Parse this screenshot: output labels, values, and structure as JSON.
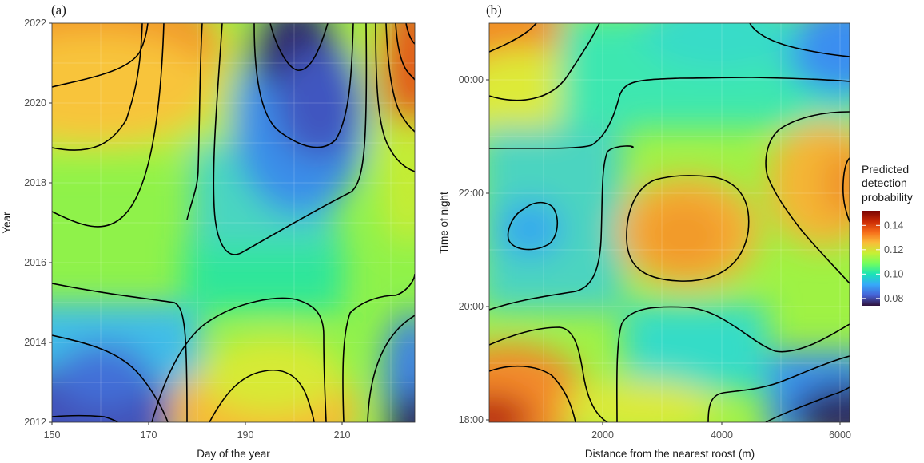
{
  "colors": {
    "heat_stops": [
      "#30123b",
      "#4662d7",
      "#36a9f9",
      "#1ae4b6",
      "#72fe5e",
      "#c8ef34",
      "#faba39",
      "#f66b19",
      "#ca2a04",
      "#7a0403"
    ],
    "contour": "#000000"
  },
  "legend": {
    "title_lines": [
      "Predicted",
      "detection",
      "probability"
    ],
    "ticks": [
      "0.14",
      "0.12",
      "0.10",
      "0.08"
    ],
    "tick_values": [
      0.14,
      0.12,
      0.1,
      0.08
    ],
    "range": [
      0.074,
      0.152
    ],
    "colormap": "turbo"
  },
  "chart_data": [
    {
      "panel": "(a)",
      "type": "heatmap",
      "xlabel": "Day of the year",
      "ylabel": "Year",
      "xlim": [
        150,
        225
      ],
      "ylim": [
        2012,
        2022
      ],
      "x_ticks": [
        150,
        170,
        190,
        210
      ],
      "x_tick_labels": [
        "150",
        "170",
        "190",
        "210"
      ],
      "y_ticks": [
        2012,
        2014,
        2016,
        2018,
        2020,
        2022
      ],
      "y_tick_labels": [
        "2012",
        "2014",
        "2016",
        "2018",
        "2020",
        "2022"
      ],
      "z_label": "Predicted detection probability",
      "z_range": [
        0.075,
        0.15
      ],
      "features": [
        {
          "x": 150,
          "y": 2022,
          "z": 0.142
        },
        {
          "x": 150,
          "y": 2012,
          "z": 0.085
        },
        {
          "x": 200,
          "y": 2022,
          "z": 0.078
        },
        {
          "x": 198,
          "y": 2012,
          "z": 0.136
        },
        {
          "x": 224,
          "y": 2022,
          "z": 0.146
        },
        {
          "x": 224,
          "y": 2012,
          "z": 0.082
        },
        {
          "x": 180,
          "y": 2016,
          "z": 0.118
        }
      ],
      "contour_lines": true
    },
    {
      "panel": "(b)",
      "type": "heatmap",
      "xlabel": "Distance from the nearest roost (m)",
      "ylabel": "Time of night",
      "xlim": [
        0,
        6200
      ],
      "ylim": [
        18,
        25
      ],
      "x_ticks": [
        2000,
        4000,
        6000
      ],
      "x_tick_labels": [
        "2000",
        "4000",
        "6000"
      ],
      "y_ticks": [
        18,
        20,
        22,
        24
      ],
      "y_tick_labels": [
        "18:00",
        "20:00",
        "22:00",
        "00:00"
      ],
      "z_label": "Predicted detection probability",
      "z_range": [
        0.075,
        0.15
      ],
      "features": [
        {
          "x": 0,
          "y": 18,
          "z": 0.152
        },
        {
          "x": 0,
          "y": 25,
          "z": 0.143
        },
        {
          "x": 6200,
          "y": 25,
          "z": 0.098
        },
        {
          "x": 6200,
          "y": 18,
          "z": 0.078
        },
        {
          "x": 3300,
          "y": 21.5,
          "z": 0.136
        },
        {
          "x": 700,
          "y": 21.5,
          "z": 0.104
        },
        {
          "x": 6100,
          "y": 22.3,
          "z": 0.138
        }
      ],
      "contour_lines": true
    }
  ]
}
